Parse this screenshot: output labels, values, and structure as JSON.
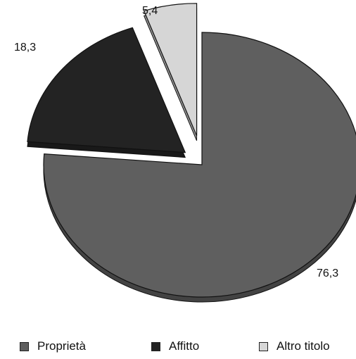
{
  "chart_data": {
    "type": "pie",
    "title": "",
    "slices": [
      {
        "name": "Proprietà",
        "value": 76.3,
        "label": "76,3",
        "color": "#5f5f5f"
      },
      {
        "name": "Affitto",
        "value": 18.3,
        "label": "18,3",
        "color": "#232323"
      },
      {
        "name": "Altro titolo",
        "value": 5.4,
        "label": "5,4",
        "color": "#d6d6d6"
      }
    ],
    "legend_position": "bottom",
    "exploded": true,
    "three_d": true
  }
}
